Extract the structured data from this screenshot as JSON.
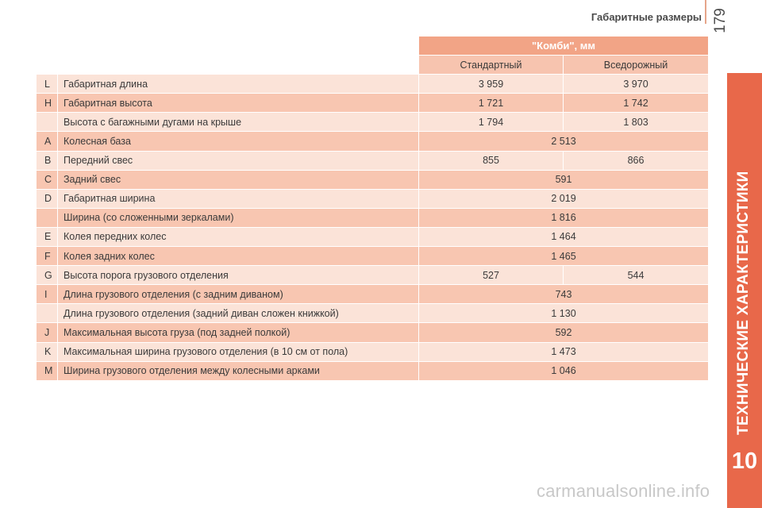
{
  "header": {
    "running_head": "Габаритные размеры",
    "page_number": "179"
  },
  "side_tab": {
    "title": "ТЕХНИЧЕСКИЕ ХАРАКТЕРИСТИКИ",
    "number": "10",
    "color": "#e8684a"
  },
  "watermark": "carmanualsonline.info",
  "table": {
    "group_header": "\"Комби\", мм",
    "columns": [
      "Стандартный",
      "Вседорожный"
    ],
    "rows": [
      {
        "code": "L",
        "label": "Габаритная длина",
        "values": [
          "3 959",
          "3 970"
        ]
      },
      {
        "code": "H",
        "label": "Габаритная высота",
        "values": [
          "1 721",
          "1 742"
        ]
      },
      {
        "code": "",
        "label": "Высота с багажными дугами на крыше",
        "values": [
          "1 794",
          "1 803"
        ]
      },
      {
        "code": "A",
        "label": "Колесная база",
        "values": [
          "2 513"
        ]
      },
      {
        "code": "B",
        "label": "Передний свес",
        "values": [
          "855",
          "866"
        ]
      },
      {
        "code": "C",
        "label": "Задний свес",
        "values": [
          "591"
        ]
      },
      {
        "code": "D",
        "label": "Габаритная ширина",
        "values": [
          "2 019"
        ]
      },
      {
        "code": "",
        "label": "Ширина (со сложенными зеркалами)",
        "values": [
          "1 816"
        ]
      },
      {
        "code": "E",
        "label": "Колея передних колес",
        "values": [
          "1 464"
        ]
      },
      {
        "code": "F",
        "label": "Колея задних колес",
        "values": [
          "1 465"
        ]
      },
      {
        "code": "G",
        "label": "Высота порога грузового отделения",
        "values": [
          "527",
          "544"
        ]
      },
      {
        "code": "I",
        "label": "Длина грузового отделения (с задним диваном)",
        "values": [
          "743"
        ]
      },
      {
        "code": "",
        "label": "Длина грузового отделения (задний диван сложен книжкой)",
        "values": [
          "1 130"
        ]
      },
      {
        "code": "J",
        "label": "Максимальная высота груза (под задней полкой)",
        "values": [
          "592"
        ]
      },
      {
        "code": "K",
        "label": "Максимальная ширина грузового отделения (в 10 см от пола)",
        "values": [
          "1 473"
        ]
      },
      {
        "code": "M",
        "label": "Ширина грузового отделения между колесными арками",
        "values": [
          "1 046"
        ]
      }
    ]
  }
}
